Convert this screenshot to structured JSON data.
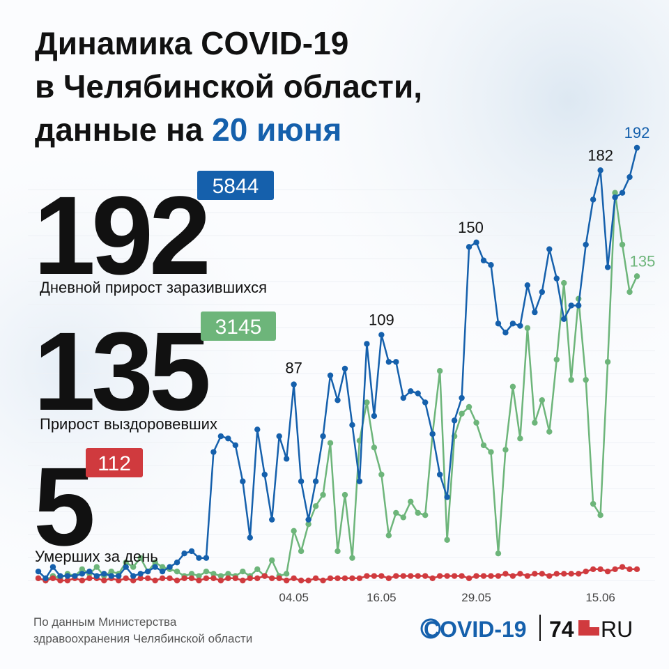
{
  "chart_data": {
    "type": "line",
    "title_lines": [
      "Динамика COVID-19",
      "в Челябинской области,",
      "данные на "
    ],
    "title_date": "20 июня",
    "stats": [
      {
        "value": 192,
        "total": 5844,
        "label": "Дневной прирост заразившихся",
        "color": "#1560ac"
      },
      {
        "value": 135,
        "total": 3145,
        "label": "Прирост выздоровевших",
        "color": "#6db57a"
      },
      {
        "value": 5,
        "total": 112,
        "label": "Умерших за день",
        "color": "#d03a3e"
      }
    ],
    "categories": [
      null,
      null,
      null,
      null,
      null,
      null,
      null,
      null,
      null,
      null,
      null,
      null,
      null,
      null,
      null,
      null,
      null,
      null,
      null,
      null,
      null,
      null,
      null,
      null,
      null,
      null,
      null,
      null,
      null,
      null,
      null,
      null,
      null,
      null,
      null,
      "04.05",
      null,
      null,
      null,
      null,
      null,
      null,
      null,
      null,
      null,
      null,
      null,
      "16.05",
      null,
      null,
      null,
      null,
      null,
      null,
      null,
      null,
      null,
      null,
      null,
      null,
      "29.05",
      null,
      null,
      null,
      null,
      null,
      null,
      null,
      null,
      null,
      null,
      null,
      null,
      null,
      null,
      null,
      null,
      "15.06",
      null,
      null,
      null,
      null,
      null
    ],
    "series": [
      {
        "color": "#6db57a",
        "values": [
          1,
          0,
          2,
          1,
          3,
          2,
          5,
          3,
          6,
          2,
          4,
          3,
          8,
          6,
          10,
          4,
          8,
          6,
          5,
          4,
          2,
          3,
          2,
          4,
          3,
          2,
          3,
          2,
          4,
          2,
          5,
          2,
          9,
          2,
          3,
          22,
          13,
          25,
          33,
          38,
          61,
          13,
          38,
          10,
          62,
          79,
          59,
          47,
          20,
          30,
          28,
          35,
          30,
          29,
          65,
          93,
          18,
          64,
          74,
          77,
          70,
          60,
          57,
          12,
          58,
          86,
          63,
          112,
          70,
          80,
          66,
          98,
          132,
          89,
          125,
          89,
          34,
          29,
          97,
          172,
          149,
          128,
          135
        ]
      },
      {
        "color": "#1560ac",
        "values": [
          4,
          1,
          6,
          2,
          2,
          2,
          3,
          4,
          2,
          3,
          2,
          2,
          6,
          2,
          3,
          4,
          6,
          4,
          6,
          8,
          12,
          13,
          10,
          10,
          57,
          64,
          63,
          60,
          44,
          19,
          67,
          47,
          27,
          64,
          54,
          87,
          44,
          27,
          44,
          64,
          91,
          80,
          94,
          69,
          44,
          105,
          73,
          109,
          97,
          97,
          81,
          84,
          83,
          79,
          65,
          47,
          37,
          71,
          81,
          148,
          150,
          142,
          140,
          114,
          110,
          114,
          113,
          131,
          119,
          128,
          147,
          134,
          116,
          122,
          122,
          149,
          169,
          182,
          139,
          170,
          172,
          179,
          192
        ]
      },
      {
        "color": "#d03a3e",
        "values": [
          1,
          0,
          1,
          0,
          0,
          1,
          0,
          1,
          1,
          0,
          1,
          0,
          1,
          0,
          1,
          1,
          0,
          1,
          1,
          0,
          1,
          1,
          0,
          1,
          1,
          0,
          1,
          1,
          0,
          1,
          1,
          2,
          1,
          1,
          0,
          1,
          0,
          0,
          1,
          0,
          1,
          1,
          1,
          1,
          1,
          2,
          2,
          2,
          1,
          2,
          2,
          2,
          2,
          2,
          1,
          2,
          2,
          2,
          2,
          1,
          2,
          2,
          2,
          2,
          3,
          2,
          3,
          2,
          3,
          3,
          2,
          3,
          3,
          3,
          3,
          4,
          5,
          5,
          4,
          5,
          6,
          5,
          5
        ]
      }
    ],
    "ylim": [
      0,
      192
    ],
    "source_lines": [
      "По данным Министерства",
      "здравоохранения Челябинской области"
    ],
    "logo": {
      "covid": "COVID-19",
      "num": "74",
      "ru": "RU"
    }
  }
}
